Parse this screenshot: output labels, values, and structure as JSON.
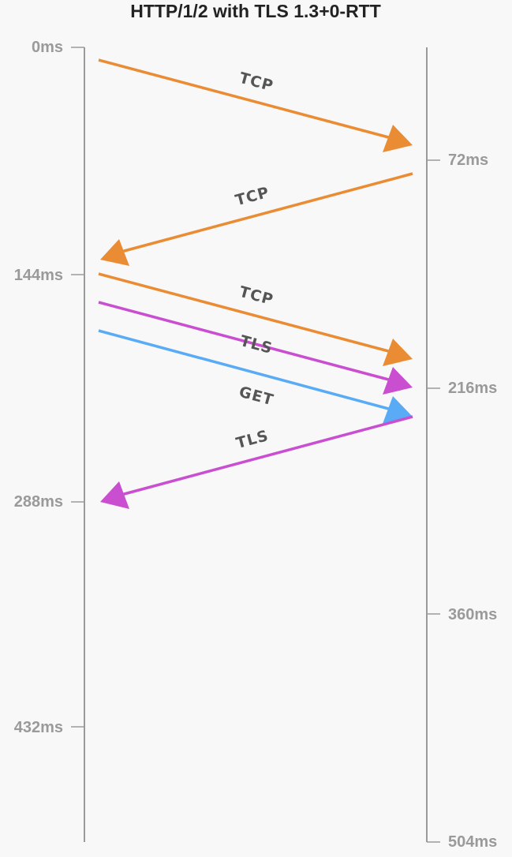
{
  "title": "HTTP/1/2 with TLS 1.3+0-RTT",
  "left_ticks": [
    "0ms",
    "144ms",
    "288ms",
    "432ms"
  ],
  "right_ticks": [
    "72ms",
    "216ms",
    "360ms",
    "504ms"
  ],
  "colors": {
    "tcp": "#ea8c33",
    "tls": "#c94fd0",
    "get": "#5aabf5"
  },
  "messages": [
    {
      "label": "TCP",
      "type": "tcp",
      "direction": "client-to-server",
      "start": "0ms",
      "end": "72ms"
    },
    {
      "label": "TCP",
      "type": "tcp",
      "direction": "server-to-client",
      "start": "72ms",
      "end": "144ms"
    },
    {
      "label": "TCP",
      "type": "tcp",
      "direction": "client-to-server",
      "start": "144ms",
      "end": "216ms"
    },
    {
      "label": "TLS",
      "type": "tls",
      "direction": "client-to-server",
      "start": "144ms",
      "end": "216ms"
    },
    {
      "label": "GET",
      "type": "get",
      "direction": "client-to-server",
      "start": "144ms",
      "end": "216ms"
    },
    {
      "label": "TLS",
      "type": "tls",
      "direction": "server-to-client",
      "start": "216ms",
      "end": "288ms"
    }
  ]
}
